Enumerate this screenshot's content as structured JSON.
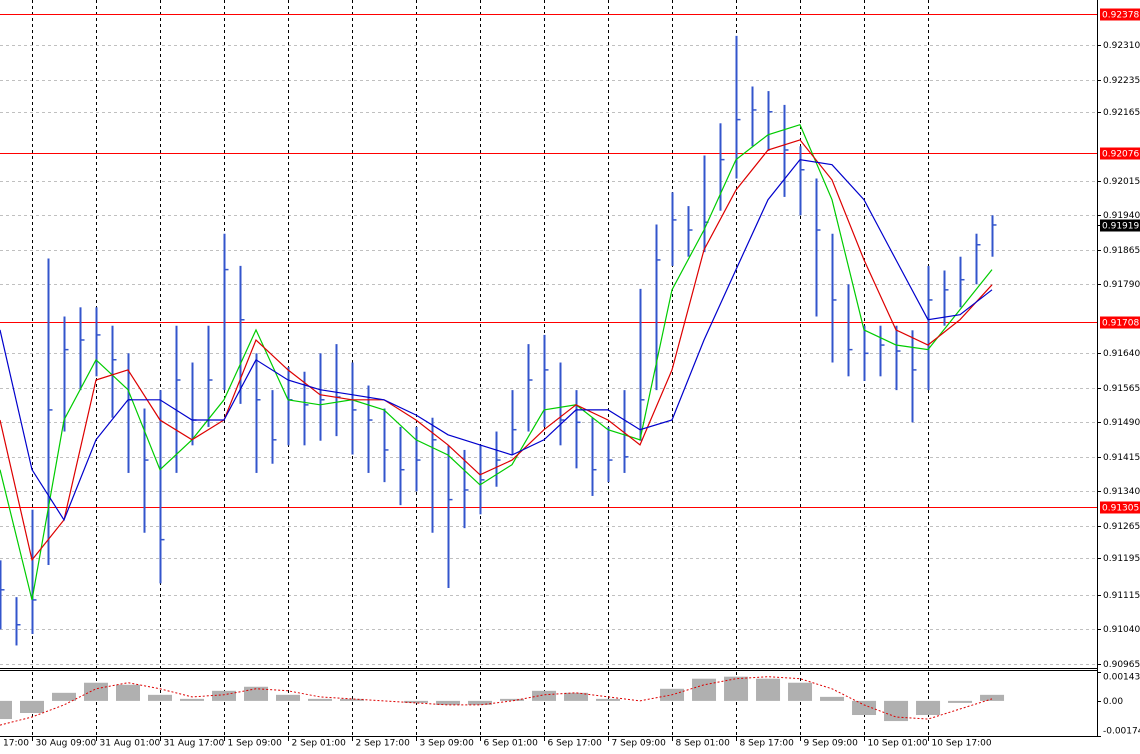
{
  "chart_data": {
    "type": "ohlc",
    "xlim": [
      0,
      68.56
    ],
    "ylim": [
      0.90956,
      0.92408
    ],
    "grid": true,
    "bar_color": "#3355cc",
    "yticks": [
      {
        "value": 0.9231,
        "label": "0.92310"
      },
      0.92235,
      0.92165,
      0.92015,
      {
        "value": 0.9194,
        "label": "0.91940"
      },
      0.91865,
      {
        "value": 0.9179,
        "label": "0.91790"
      },
      {
        "value": 0.9164,
        "label": "0.91640"
      },
      0.91565,
      {
        "value": 0.9149,
        "label": "0.91490"
      },
      0.91415,
      {
        "value": 0.9134,
        "label": "0.91340"
      },
      0.91265,
      0.91195,
      0.91115,
      {
        "value": 0.9104,
        "label": "0.91040"
      },
      0.90965
    ],
    "xticks": [
      {
        "value": -2,
        "label": "17:00"
      },
      {
        "value": 2,
        "label": "30 Aug 09:00"
      },
      {
        "value": 6,
        "label": "31 Aug 01:00"
      },
      {
        "value": 10,
        "label": "31 Aug 17:00"
      },
      {
        "value": 14,
        "label": "1 Sep 09:00"
      },
      {
        "value": 18,
        "label": "2 Sep 01:00"
      },
      {
        "value": 22,
        "label": "2 Sep 17:00"
      },
      {
        "value": 26,
        "label": "3 Sep 09:00"
      },
      {
        "value": 30,
        "label": "6 Sep 01:00"
      },
      {
        "value": 34,
        "label": "6 Sep 17:00"
      },
      {
        "value": 38,
        "label": "7 Sep 09:00"
      },
      {
        "value": 42,
        "label": "8 Sep 01:00"
      },
      {
        "value": 46,
        "label": "8 Sep 17:00"
      },
      {
        "value": 50,
        "label": "9 Sep 09:00"
      },
      {
        "value": 54,
        "label": "10 Sep 01:00"
      },
      {
        "value": 58,
        "label": "10 Sep 17:00"
      }
    ],
    "high": [
      0.9119,
      0.9111,
      0.913,
      0.91846,
      0.9172,
      0.9174,
      0.9174,
      0.917,
      0.9164,
      0.9152,
      0.9156,
      0.917,
      0.9162,
      0.917,
      0.919,
      0.9183,
      0.9164,
      0.9156,
      0.9161,
      0.916,
      0.9164,
      0.9166,
      0.9162,
      0.9157,
      0.9152,
      0.9148,
      0.9148,
      0.915,
      0.9144,
      0.9143,
      0.9144,
      0.9147,
      0.9156,
      0.9166,
      0.9168,
      0.9162,
      0.9156,
      0.915,
      0.9148,
      0.9156,
      0.9178,
      0.9192,
      0.9199,
      0.9196,
      0.9207,
      0.9214,
      0.9233,
      0.9222,
      0.9221,
      0.9218,
      0.9209,
      0.9202,
      0.919,
      0.9179,
      0.917,
      0.917,
      0.917,
      0.9169,
      0.9183,
      0.9182,
      0.9185,
      0.919,
      0.9194
    ],
    "low": [
      0.9104,
      0.91005,
      0.9103,
      0.9118,
      0.9147,
      0.9156,
      0.9159,
      0.915,
      0.9138,
      0.9125,
      0.9114,
      0.9138,
      0.9144,
      0.9148,
      0.9156,
      0.9153,
      0.9138,
      0.914,
      0.9144,
      0.9144,
      0.9145,
      0.9146,
      0.9142,
      0.9138,
      0.9136,
      0.9131,
      0.9134,
      0.9125,
      0.9113,
      0.9126,
      0.9129,
      0.9135,
      0.9142,
      0.9147,
      0.9148,
      0.9144,
      0.9139,
      0.9133,
      0.9136,
      0.9138,
      0.9145,
      0.9156,
      0.9183,
      0.9185,
      0.9186,
      0.9195,
      0.9202,
      0.9209,
      0.9208,
      0.9198,
      0.9194,
      0.9172,
      0.9162,
      0.9159,
      0.9158,
      0.9159,
      0.9156,
      0.9149,
      0.9156,
      0.917,
      0.9174,
      0.9179,
      0.9185
    ],
    "close": [
      0.91126,
      0.9105,
      0.91104,
      0.91517,
      0.91648,
      0.91669,
      0.9168,
      0.91626,
      0.91539,
      0.91408,
      0.91235,
      0.91582,
      0.91495,
      0.91582,
      0.91822,
      0.91713,
      0.91539,
      0.91452,
      0.91539,
      0.91528,
      0.91539,
      0.91545,
      0.91517,
      0.91495,
      0.9143,
      0.91387,
      0.91408,
      0.91452,
      0.91322,
      0.91343,
      0.91365,
      0.91408,
      0.91474,
      0.91582,
      0.91604,
      0.91495,
      0.9149,
      0.91387,
      0.91408,
      0.91415,
      0.91539,
      0.91843,
      0.9193,
      0.91908,
      0.91925,
      0.92061,
      0.92148,
      0.92169,
      0.92165,
      0.92082,
      0.92039,
      0.91908,
      0.91756,
      0.91648,
      0.9164,
      0.91658,
      0.91645,
      0.91604,
      0.91756,
      0.91778,
      0.918,
      0.91876,
      0.91919
    ],
    "ma_x": [
      0,
      2,
      4,
      6,
      8,
      10,
      12,
      14,
      16,
      18,
      20,
      22,
      24,
      26,
      28,
      30,
      32,
      34,
      36,
      38,
      40,
      42,
      44,
      46,
      48,
      50,
      52,
      54,
      56,
      58,
      60,
      62
    ],
    "series": [
      {
        "color": "#00cc00",
        "values": [
          0.91387,
          0.91104,
          0.91495,
          0.91626,
          0.91561,
          0.91387,
          0.91452,
          0.91539,
          0.91691,
          0.91539,
          0.91528,
          0.91539,
          0.91517,
          0.91452,
          0.91419,
          0.91354,
          0.91398,
          0.91517,
          0.91528,
          0.91474,
          0.91452,
          0.91778,
          0.91908,
          0.92061,
          0.92115,
          0.92137,
          0.91974,
          0.91691,
          0.91658,
          0.91648,
          0.91735,
          0.91822
        ]
      },
      {
        "color": "#dd0000",
        "values": [
          0.91495,
          0.91191,
          0.91278,
          0.91582,
          0.91604,
          0.91495,
          0.91452,
          0.91495,
          0.91669,
          0.91604,
          0.9155,
          0.91539,
          0.91539,
          0.91495,
          0.91441,
          0.91376,
          0.91408,
          0.91474,
          0.91528,
          0.91495,
          0.91441,
          0.91604,
          0.91865,
          0.91995,
          0.92082,
          0.92104,
          0.92017,
          0.91843,
          0.91691,
          0.91658,
          0.91713,
          0.91789
        ]
      },
      {
        "color": "#0000cc",
        "values": [
          0.91691,
          0.91387,
          0.91278,
          0.91452,
          0.91539,
          0.91539,
          0.91495,
          0.91495,
          0.91626,
          0.91582,
          0.91561,
          0.9155,
          0.91539,
          0.91506,
          0.91463,
          0.91441,
          0.91419,
          0.91452,
          0.91517,
          0.91517,
          0.91474,
          0.91495,
          0.91669,
          0.91822,
          0.91974,
          0.92061,
          0.9205,
          0.91974,
          0.91843,
          0.91713,
          0.91724,
          0.91778
        ]
      }
    ],
    "levels": {
      "color": "#ff0000",
      "values": [
        0.92378,
        0.92076,
        0.91708,
        0.91305
      ]
    },
    "current_price": {
      "value": 0.91919,
      "color": "#000000"
    },
    "oscillator": {
      "ylim": [
        -0.00174,
        0.001432
      ],
      "yticks": [
        0.001432,
        {
          "value": 0,
          "label": "0.00"
        },
        -0.00174
      ],
      "histogram": {
        "color": "#b0b0b0",
        "values": [
          -0.0009,
          -0.0006,
          0.0004,
          0.0009,
          0.0008,
          0.0003,
          0.0001,
          0.0005,
          0.0007,
          0.0003,
          0.0001,
          0.0001,
          0,
          -0.0001,
          -0.0002,
          -0.0002,
          0.0001,
          0.0005,
          0.0004,
          0.0001,
          0,
          0.0006,
          0.0011,
          0.0012,
          0.0011,
          0.0009,
          0.0002,
          -0.0007,
          -0.001,
          -0.0007,
          -0.0001,
          0.0003
        ]
      },
      "signal": {
        "color": "#dd0000",
        "values": [
          -0.0012,
          -0.0008,
          -0.0002,
          0.0006,
          0.0009,
          0.0006,
          0.0002,
          0.0003,
          0.0006,
          0.0005,
          0.0002,
          0.0001,
          0,
          -0.0001,
          -0.0002,
          -0.0002,
          0,
          0.0003,
          0.0004,
          0.0002,
          0,
          0.0003,
          0.0008,
          0.0011,
          0.0012,
          0.0011,
          0.0006,
          -0.0002,
          -0.0008,
          -0.0009,
          -0.0004,
          0.0001
        ]
      }
    }
  }
}
